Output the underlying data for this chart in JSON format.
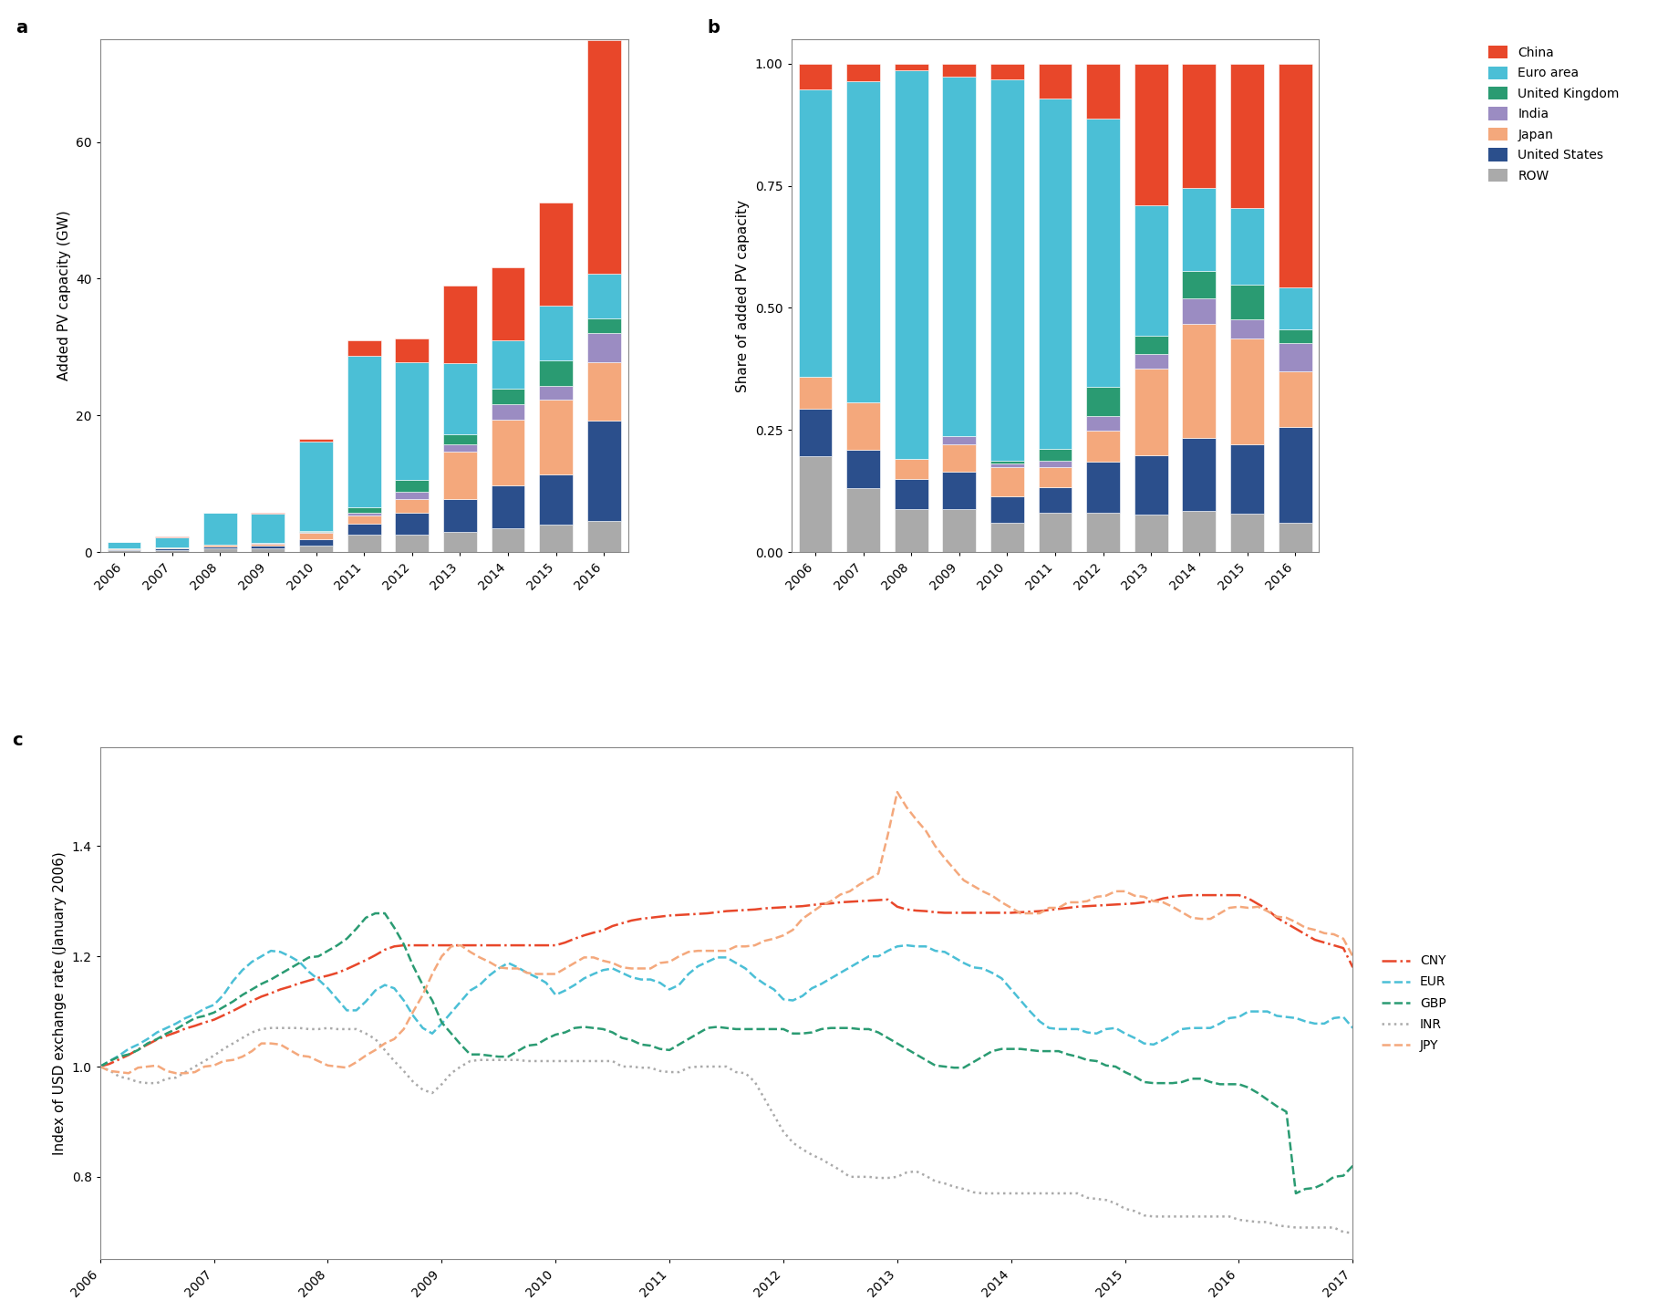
{
  "years_bar": [
    2006,
    2007,
    2008,
    2009,
    2010,
    2011,
    2012,
    2013,
    2014,
    2015,
    2016
  ],
  "bar_data": {
    "ROW": [
      0.3,
      0.3,
      0.5,
      0.5,
      1.0,
      2.5,
      2.5,
      3.0,
      3.5,
      4.0,
      4.5
    ],
    "United States": [
      0.15,
      0.18,
      0.36,
      0.44,
      0.88,
      1.6,
      3.31,
      4.75,
      6.2,
      7.3,
      14.7
    ],
    "Japan": [
      0.1,
      0.22,
      0.24,
      0.32,
      0.99,
      1.3,
      2.0,
      6.9,
      9.7,
      11.0,
      8.6
    ],
    "India": [
      0.0,
      0.0,
      0.0,
      0.1,
      0.12,
      0.36,
      0.94,
      1.12,
      2.2,
      2.0,
      4.3
    ],
    "United Kingdom": [
      0.0,
      0.0,
      0.0,
      0.0,
      0.1,
      0.78,
      1.84,
      1.49,
      2.3,
      3.7,
      2.1
    ],
    "Euro area": [
      0.9,
      1.5,
      4.6,
      4.2,
      13.0,
      22.2,
      17.2,
      10.4,
      7.1,
      8.0,
      6.5
    ],
    "China": [
      0.08,
      0.08,
      0.08,
      0.15,
      0.52,
      2.2,
      3.5,
      11.3,
      10.6,
      15.1,
      34.2
    ]
  },
  "bar_colors": {
    "China": "#E8472A",
    "Euro area": "#4BBFD6",
    "United Kingdom": "#2A9B72",
    "India": "#9B8CC2",
    "Japan": "#F4A87C",
    "United States": "#2B4F8C",
    "ROW": "#AAAAAA"
  },
  "bar_order": [
    "ROW",
    "United States",
    "Japan",
    "India",
    "United Kingdom",
    "Euro area",
    "China"
  ],
  "ylabel_a": "Added PV capacity (GW)",
  "ylabel_b": "Share of added PV capacity",
  "share_data": {
    "ROW": [
      0.185,
      0.13,
      0.09,
      0.085,
      0.063,
      0.081,
      0.079,
      0.078,
      0.085,
      0.079,
      0.06
    ],
    "United States": [
      0.093,
      0.078,
      0.064,
      0.075,
      0.055,
      0.052,
      0.103,
      0.124,
      0.149,
      0.144,
      0.197
    ],
    "Japan": [
      0.062,
      0.096,
      0.043,
      0.055,
      0.062,
      0.042,
      0.063,
      0.18,
      0.234,
      0.218,
      0.115
    ],
    "India": [
      0.0,
      0.0,
      0.0,
      0.017,
      0.008,
      0.012,
      0.029,
      0.029,
      0.053,
      0.04,
      0.058
    ],
    "United Kingdom": [
      0.0,
      0.0,
      0.0,
      0.0,
      0.006,
      0.025,
      0.058,
      0.039,
      0.055,
      0.073,
      0.028
    ],
    "Euro area": [
      0.556,
      0.652,
      0.821,
      0.717,
      0.813,
      0.72,
      0.54,
      0.271,
      0.171,
      0.158,
      0.087
    ],
    "China": [
      0.049,
      0.035,
      0.014,
      0.026,
      0.033,
      0.071,
      0.11,
      0.294,
      0.254,
      0.298,
      0.459
    ]
  },
  "line_data": {
    "CNY": {
      "y": [
        1.0,
        1.005,
        1.013,
        1.021,
        1.031,
        1.04,
        1.049,
        1.056,
        1.062,
        1.069,
        1.074,
        1.08,
        1.085,
        1.093,
        1.101,
        1.11,
        1.119,
        1.127,
        1.133,
        1.14,
        1.145,
        1.151,
        1.156,
        1.161,
        1.165,
        1.17,
        1.177,
        1.185,
        1.193,
        1.202,
        1.212,
        1.218,
        1.22,
        1.22,
        1.22,
        1.22,
        1.22,
        1.22,
        1.22,
        1.22,
        1.22,
        1.22,
        1.22,
        1.22,
        1.22,
        1.22,
        1.22,
        1.22,
        1.22,
        1.225,
        1.232,
        1.238,
        1.243,
        1.247,
        1.255,
        1.26,
        1.265,
        1.268,
        1.27,
        1.272,
        1.274,
        1.275,
        1.276,
        1.277,
        1.278,
        1.28,
        1.282,
        1.283,
        1.284,
        1.285,
        1.287,
        1.288,
        1.289,
        1.29,
        1.291,
        1.293,
        1.295,
        1.296,
        1.298,
        1.299,
        1.3,
        1.301,
        1.302,
        1.303,
        1.29,
        1.285,
        1.283,
        1.282,
        1.28,
        1.279,
        1.279,
        1.279,
        1.279,
        1.279,
        1.279,
        1.279,
        1.279,
        1.28,
        1.281,
        1.282,
        1.284,
        1.286,
        1.288,
        1.29,
        1.291,
        1.292,
        1.293,
        1.294,
        1.295,
        1.296,
        1.298,
        1.3,
        1.305,
        1.308,
        1.31,
        1.311,
        1.311,
        1.311,
        1.311,
        1.311,
        1.311,
        1.305,
        1.295,
        1.285,
        1.27,
        1.26,
        1.25,
        1.24,
        1.23,
        1.225,
        1.22,
        1.215,
        1.18
      ]
    },
    "EUR": {
      "y": [
        1.0,
        1.01,
        1.02,
        1.032,
        1.04,
        1.05,
        1.062,
        1.07,
        1.078,
        1.088,
        1.095,
        1.105,
        1.112,
        1.13,
        1.155,
        1.175,
        1.19,
        1.2,
        1.21,
        1.208,
        1.2,
        1.19,
        1.172,
        1.158,
        1.142,
        1.122,
        1.102,
        1.102,
        1.118,
        1.138,
        1.148,
        1.142,
        1.12,
        1.092,
        1.07,
        1.06,
        1.078,
        1.098,
        1.118,
        1.138,
        1.148,
        1.165,
        1.178,
        1.188,
        1.18,
        1.17,
        1.162,
        1.152,
        1.13,
        1.138,
        1.148,
        1.16,
        1.168,
        1.175,
        1.178,
        1.17,
        1.162,
        1.158,
        1.158,
        1.152,
        1.14,
        1.148,
        1.168,
        1.182,
        1.19,
        1.198,
        1.198,
        1.188,
        1.178,
        1.162,
        1.15,
        1.14,
        1.122,
        1.12,
        1.128,
        1.142,
        1.15,
        1.16,
        1.17,
        1.18,
        1.19,
        1.2,
        1.2,
        1.21,
        1.218,
        1.22,
        1.218,
        1.218,
        1.21,
        1.208,
        1.198,
        1.188,
        1.18,
        1.178,
        1.17,
        1.16,
        1.14,
        1.12,
        1.1,
        1.082,
        1.07,
        1.068,
        1.068,
        1.068,
        1.062,
        1.06,
        1.068,
        1.07,
        1.06,
        1.052,
        1.042,
        1.04,
        1.048,
        1.058,
        1.068,
        1.07,
        1.07,
        1.07,
        1.078,
        1.088,
        1.09,
        1.1,
        1.1,
        1.1,
        1.092,
        1.09,
        1.088,
        1.082,
        1.078,
        1.078,
        1.088,
        1.09,
        1.07
      ]
    },
    "GBP": {
      "y": [
        1.0,
        1.01,
        1.018,
        1.022,
        1.03,
        1.042,
        1.05,
        1.06,
        1.068,
        1.078,
        1.088,
        1.092,
        1.098,
        1.108,
        1.118,
        1.13,
        1.14,
        1.15,
        1.158,
        1.168,
        1.178,
        1.188,
        1.198,
        1.2,
        1.21,
        1.22,
        1.232,
        1.25,
        1.27,
        1.278,
        1.278,
        1.252,
        1.222,
        1.182,
        1.148,
        1.12,
        1.08,
        1.06,
        1.04,
        1.022,
        1.022,
        1.02,
        1.018,
        1.018,
        1.028,
        1.038,
        1.04,
        1.05,
        1.058,
        1.062,
        1.07,
        1.072,
        1.07,
        1.068,
        1.062,
        1.052,
        1.048,
        1.04,
        1.038,
        1.032,
        1.03,
        1.04,
        1.05,
        1.06,
        1.07,
        1.072,
        1.07,
        1.068,
        1.068,
        1.068,
        1.068,
        1.068,
        1.068,
        1.06,
        1.06,
        1.062,
        1.068,
        1.07,
        1.07,
        1.07,
        1.068,
        1.068,
        1.062,
        1.052,
        1.042,
        1.032,
        1.022,
        1.012,
        1.002,
        1.0,
        0.998,
        0.998,
        1.008,
        1.018,
        1.028,
        1.032,
        1.032,
        1.032,
        1.03,
        1.028,
        1.028,
        1.028,
        1.022,
        1.018,
        1.012,
        1.01,
        1.002,
        1.0,
        0.99,
        0.982,
        0.972,
        0.97,
        0.97,
        0.97,
        0.972,
        0.978,
        0.978,
        0.972,
        0.968,
        0.968,
        0.968,
        0.962,
        0.952,
        0.94,
        0.928,
        0.918,
        0.77,
        0.778,
        0.78,
        0.788,
        0.8,
        0.802,
        0.82
      ]
    },
    "INR": {
      "y": [
        1.0,
        0.993,
        0.982,
        0.978,
        0.972,
        0.97,
        0.97,
        0.978,
        0.98,
        0.99,
        1.0,
        1.01,
        1.02,
        1.032,
        1.042,
        1.052,
        1.062,
        1.068,
        1.07,
        1.07,
        1.07,
        1.07,
        1.068,
        1.068,
        1.07,
        1.068,
        1.068,
        1.068,
        1.06,
        1.05,
        1.03,
        1.01,
        0.992,
        0.972,
        0.958,
        0.952,
        0.968,
        0.988,
        1.0,
        1.01,
        1.012,
        1.012,
        1.012,
        1.012,
        1.012,
        1.01,
        1.01,
        1.01,
        1.01,
        1.01,
        1.01,
        1.01,
        1.01,
        1.01,
        1.01,
        1.0,
        1.0,
        0.998,
        0.998,
        0.992,
        0.99,
        0.99,
        0.998,
        1.0,
        1.0,
        1.0,
        1.0,
        0.99,
        0.988,
        0.972,
        0.942,
        0.912,
        0.882,
        0.862,
        0.85,
        0.84,
        0.832,
        0.822,
        0.812,
        0.8,
        0.8,
        0.8,
        0.798,
        0.798,
        0.8,
        0.808,
        0.81,
        0.802,
        0.792,
        0.788,
        0.782,
        0.778,
        0.772,
        0.77,
        0.77,
        0.77,
        0.77,
        0.77,
        0.77,
        0.77,
        0.77,
        0.77,
        0.77,
        0.77,
        0.762,
        0.76,
        0.758,
        0.752,
        0.742,
        0.738,
        0.73,
        0.728,
        0.728,
        0.728,
        0.728,
        0.728,
        0.728,
        0.728,
        0.728,
        0.728,
        0.722,
        0.72,
        0.718,
        0.718,
        0.712,
        0.71,
        0.708,
        0.708,
        0.708,
        0.708,
        0.708,
        0.7,
        0.698
      ]
    },
    "JPY": {
      "y": [
        1.0,
        0.992,
        0.99,
        0.988,
        0.998,
        1.0,
        1.002,
        0.992,
        0.988,
        0.988,
        0.99,
        1.0,
        1.002,
        1.01,
        1.012,
        1.018,
        1.028,
        1.042,
        1.042,
        1.04,
        1.03,
        1.02,
        1.018,
        1.01,
        1.002,
        1.0,
        0.998,
        1.008,
        1.02,
        1.03,
        1.042,
        1.05,
        1.068,
        1.1,
        1.13,
        1.168,
        1.2,
        1.218,
        1.22,
        1.208,
        1.198,
        1.19,
        1.18,
        1.178,
        1.178,
        1.17,
        1.168,
        1.168,
        1.168,
        1.178,
        1.188,
        1.198,
        1.198,
        1.192,
        1.188,
        1.18,
        1.178,
        1.178,
        1.178,
        1.188,
        1.19,
        1.2,
        1.208,
        1.21,
        1.21,
        1.21,
        1.21,
        1.218,
        1.218,
        1.22,
        1.228,
        1.232,
        1.238,
        1.248,
        1.268,
        1.28,
        1.292,
        1.3,
        1.312,
        1.318,
        1.33,
        1.34,
        1.35,
        1.42,
        1.498,
        1.47,
        1.448,
        1.428,
        1.4,
        1.378,
        1.358,
        1.338,
        1.328,
        1.318,
        1.31,
        1.298,
        1.288,
        1.278,
        1.278,
        1.278,
        1.288,
        1.288,
        1.298,
        1.298,
        1.3,
        1.308,
        1.31,
        1.318,
        1.318,
        1.31,
        1.308,
        1.3,
        1.298,
        1.29,
        1.28,
        1.27,
        1.268,
        1.268,
        1.278,
        1.288,
        1.29,
        1.288,
        1.29,
        1.282,
        1.272,
        1.27,
        1.262,
        1.252,
        1.248,
        1.242,
        1.24,
        1.232,
        1.2
      ]
    }
  },
  "line_styles": {
    "CNY": {
      "color": "#E8472A",
      "linestyle": "-.",
      "linewidth": 1.8
    },
    "EUR": {
      "color": "#4BBFD6",
      "linestyle": "--",
      "linewidth": 1.8
    },
    "GBP": {
      "color": "#2A9B72",
      "linestyle": "--",
      "linewidth": 1.8
    },
    "INR": {
      "color": "#AAAAAA",
      "linestyle": ":",
      "linewidth": 1.8
    },
    "JPY": {
      "color": "#F4A87C",
      "linestyle": "--",
      "linewidth": 1.8
    }
  },
  "ylabel_c": "Index of USD exchange rate (January 2006)",
  "ylim_c": [
    0.65,
    1.58
  ],
  "yticks_c": [
    0.8,
    1.0,
    1.2,
    1.4
  ],
  "xlim_c": [
    2006.0,
    2017.0
  ],
  "xticks_c": [
    2006,
    2007,
    2008,
    2009,
    2010,
    2011,
    2012,
    2013,
    2014,
    2015,
    2016,
    2017
  ],
  "background_color": "#FFFFFF",
  "panel_labels": [
    "a",
    "b",
    "c"
  ],
  "legend_entries_ab": [
    "China",
    "Euro area",
    "United Kingdom",
    "India",
    "Japan",
    "United States",
    "ROW"
  ],
  "legend_entries_c": [
    "CNY",
    "EUR",
    "GBP",
    "INR",
    "JPY"
  ]
}
